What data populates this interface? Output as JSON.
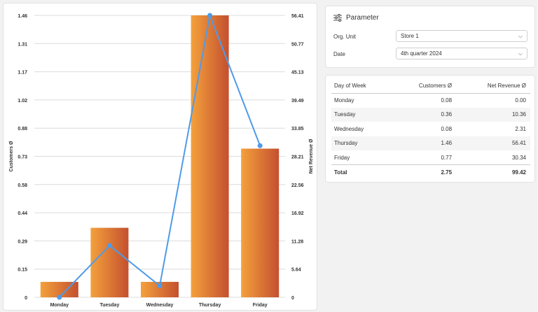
{
  "chart_data": {
    "type": "bar",
    "categories": [
      "Monday",
      "Tuesday",
      "Wednesday",
      "Thursday",
      "Friday"
    ],
    "series": [
      {
        "name": "Customers Ø",
        "type": "bar",
        "axis": "left",
        "values": [
          0.08,
          0.36,
          0.08,
          1.46,
          0.77
        ]
      },
      {
        "name": "Net Revenue Ø",
        "type": "line",
        "axis": "right",
        "values": [
          0.0,
          10.36,
          2.31,
          56.41,
          30.34
        ]
      }
    ],
    "ylabel": "Customers Ø",
    "y2label": "Net Revenue Ø",
    "ylim": [
      0,
      1.46
    ],
    "y2lim": [
      0,
      56.41
    ],
    "yticks": [
      "0",
      "0.15",
      "0.29",
      "0.44",
      "0.58",
      "0.73",
      "0.88",
      "1.02",
      "1.17",
      "1.31",
      "1.46"
    ],
    "y2ticks": [
      "0",
      "5.64",
      "11.28",
      "16.92",
      "22.56",
      "28.21",
      "33.85",
      "39.49",
      "45.13",
      "50.77",
      "56.41"
    ],
    "grid": true
  },
  "colors": {
    "bar_light": "#f4a13c",
    "bar_dark": "#c4502f",
    "line": "#4f9be8"
  },
  "parameter": {
    "title": "Parameter",
    "icon": "sliders-icon",
    "org_unit_label": "Org. Unit",
    "org_unit_value": "Store 1",
    "date_label": "Date",
    "date_value": "4th quarter 2024"
  },
  "table": {
    "headers": [
      "Day of Week",
      "Customers Ø",
      "Net Revenue Ø"
    ],
    "rows": [
      [
        "Monday",
        "0.08",
        "0.00"
      ],
      [
        "Tuesday",
        "0.36",
        "10.36"
      ],
      [
        "Wednesday",
        "0.08",
        "2.31"
      ],
      [
        "Thursday",
        "1.46",
        "56.41"
      ],
      [
        "Friday",
        "0.77",
        "30.34"
      ]
    ],
    "total": [
      "Total",
      "2.75",
      "99.42"
    ]
  }
}
